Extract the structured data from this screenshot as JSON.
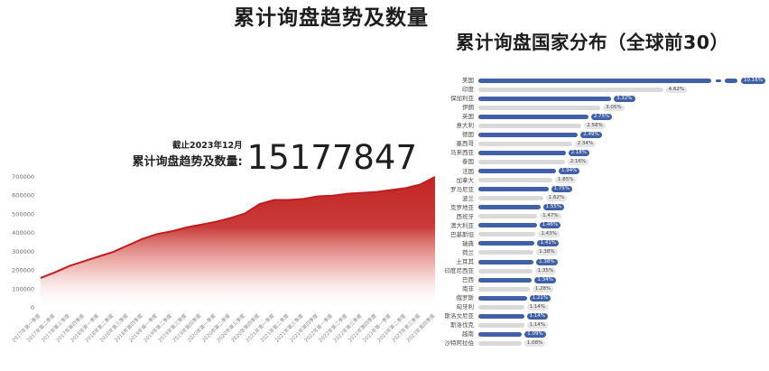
{
  "trend": {
    "title": "累计询盘趋势及数量",
    "as_of": "截止2023年12月",
    "total_label": "累计询盘趋势及数量:",
    "total_value": "15177847"
  },
  "country": {
    "title": "累计询盘国家分布（全球前30）"
  },
  "colors": {
    "area_red": "#c32524",
    "area_line": "#bf1e1e",
    "bar_blue": "#4060a7",
    "bar_gray": "#d9d9d9",
    "pill_gray_bg": "#e5e5e5",
    "title_text": "#1d1d1d",
    "axis_text": "#6b6b6b",
    "x_tick_text": "#8a8a8a"
  },
  "chart_data": [
    {
      "type": "area",
      "title": "累计询盘趋势及数量",
      "annotation": "截止2023年12月 累计询盘趋势及数量: 15177847",
      "x": [
        "2017年第一季度",
        "2017年第二季度",
        "2017年第三季度",
        "2017年第四季度",
        "2018年第一季度",
        "2018年第二季度",
        "2018年第三季度",
        "2018年第四季度",
        "2019年第一季度",
        "2019年第二季度",
        "2019年第三季度",
        "2019年第四季度",
        "2020年第一季度",
        "2020年第二季度",
        "2020年第三季度",
        "2020年第四季度",
        "2021年第一季度",
        "2021年第二季度",
        "2021年第三季度",
        "2021年第四季度",
        "2022年第一季度",
        "2022年第二季度",
        "2022年第三季度",
        "2022年第四季度",
        "2023年第一季度",
        "2023年第二季度",
        "2023年第三季度",
        "2023年第四季度"
      ],
      "values": [
        160000,
        190000,
        225000,
        250000,
        275000,
        300000,
        335000,
        370000,
        395000,
        410000,
        430000,
        445000,
        460000,
        480000,
        505000,
        555000,
        577000,
        577000,
        582000,
        596000,
        600000,
        610000,
        615000,
        620000,
        630000,
        640000,
        660000,
        700000
      ],
      "xlabel": "",
      "ylabel": "",
      "ylim": [
        0,
        700000
      ],
      "yticks": [
        0,
        100000,
        200000,
        300000,
        400000,
        500000,
        600000,
        700000
      ],
      "grid": false,
      "legend": false
    },
    {
      "type": "bar",
      "orientation": "horizontal",
      "title": "累计询盘国家分布（全球前30）",
      "categories": [
        "美国",
        "印度",
        "保加利亚",
        "伊朗",
        "英国",
        "意大利",
        "德国",
        "墨西哥",
        "马来西亚",
        "泰国",
        "法国",
        "加拿大",
        "罗马尼亚",
        "波兰",
        "克罗地亚",
        "西班牙",
        "澳大利亚",
        "巴基斯坦",
        "瑞典",
        "荷兰",
        "土耳其",
        "印度尼西亚",
        "巴西",
        "南非",
        "俄罗斯",
        "匈牙利",
        "斯洛文尼亚",
        "斯洛伐克",
        "越南",
        "沙特阿拉伯"
      ],
      "values": [
        10.16,
        4.62,
        3.32,
        3.05,
        2.75,
        2.58,
        2.49,
        2.34,
        2.18,
        2.16,
        1.94,
        1.85,
        1.75,
        1.62,
        1.55,
        1.47,
        1.46,
        1.43,
        1.41,
        1.38,
        1.38,
        1.35,
        1.34,
        1.28,
        1.21,
        1.14,
        1.14,
        1.14,
        1.09,
        1.08
      ],
      "value_suffix": "%",
      "axis_break_category": "美国",
      "legend": false,
      "grid": false
    }
  ]
}
